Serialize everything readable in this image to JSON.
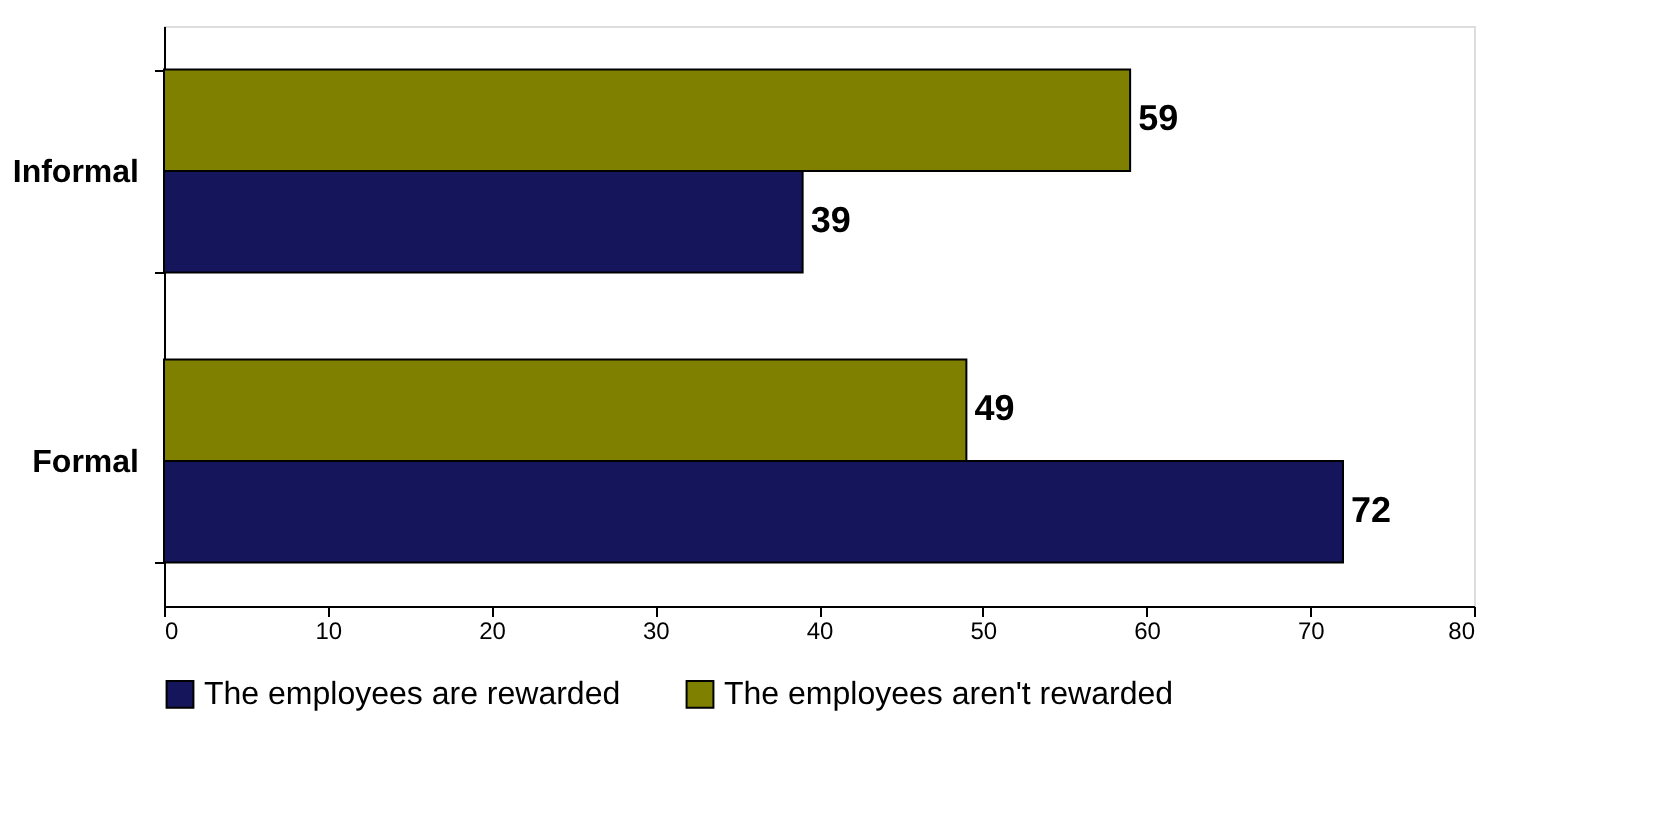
{
  "chart_data": {
    "type": "bar",
    "orientation": "horizontal",
    "categories": [
      "Informal",
      "Formal"
    ],
    "series": [
      {
        "name": "The employees are rewarded",
        "color": "#15155c",
        "values": [
          39,
          72
        ]
      },
      {
        "name": "The employees aren't rewarded",
        "color": "#808000",
        "values": [
          59,
          49
        ]
      }
    ],
    "xlim": [
      0,
      80
    ],
    "xticks": [
      0,
      10,
      20,
      30,
      40,
      50,
      60,
      70,
      80
    ],
    "grid": false,
    "legend": "bottom",
    "data_labels": true
  }
}
